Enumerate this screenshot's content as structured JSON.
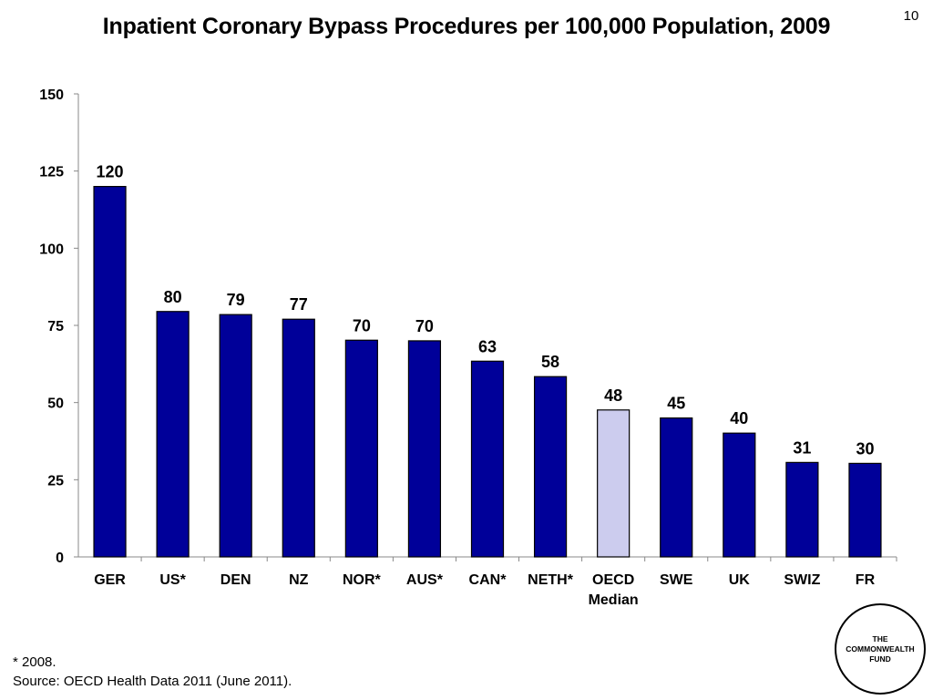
{
  "page_number": "10",
  "title": "Inpatient Coronary Bypass Procedures per 100,000 Population, 2009",
  "footnote": {
    "note": "* 2008.",
    "source": "Source: OECD Health Data 2011 (June 2011)."
  },
  "logo": {
    "line1": "THE",
    "line2": "COMMONWEALTH",
    "line3": "FUND"
  },
  "colors": {
    "bar": "#000099",
    "highlight": "#ccccee",
    "outline": "#000000"
  },
  "chart_data": {
    "type": "bar",
    "title": "Inpatient Coronary Bypass Procedures per 100,000 Population, 2009",
    "categories": [
      "GER",
      "US*",
      "DEN",
      "NZ",
      "NOR*",
      "AUS*",
      "CAN*",
      "NETH*",
      "OECD\nMedian",
      "SWE",
      "UK",
      "SWIZ",
      "FR"
    ],
    "values": [
      120,
      79.5,
      78.5,
      77,
      70.2,
      70,
      63.4,
      58.4,
      47.6,
      45,
      40.1,
      30.6,
      30.3
    ],
    "data_labels": [
      "120",
      "80",
      "79",
      "77",
      "70",
      "70",
      "63",
      "58",
      "48",
      "45",
      "40",
      "31",
      "30"
    ],
    "highlight_category": "OECD\nMedian",
    "ylim": [
      0,
      150
    ],
    "yticks": [
      0,
      25,
      50,
      75,
      100,
      125,
      150
    ],
    "xlabel": "",
    "ylabel": "",
    "grid": false,
    "legend": "none"
  }
}
